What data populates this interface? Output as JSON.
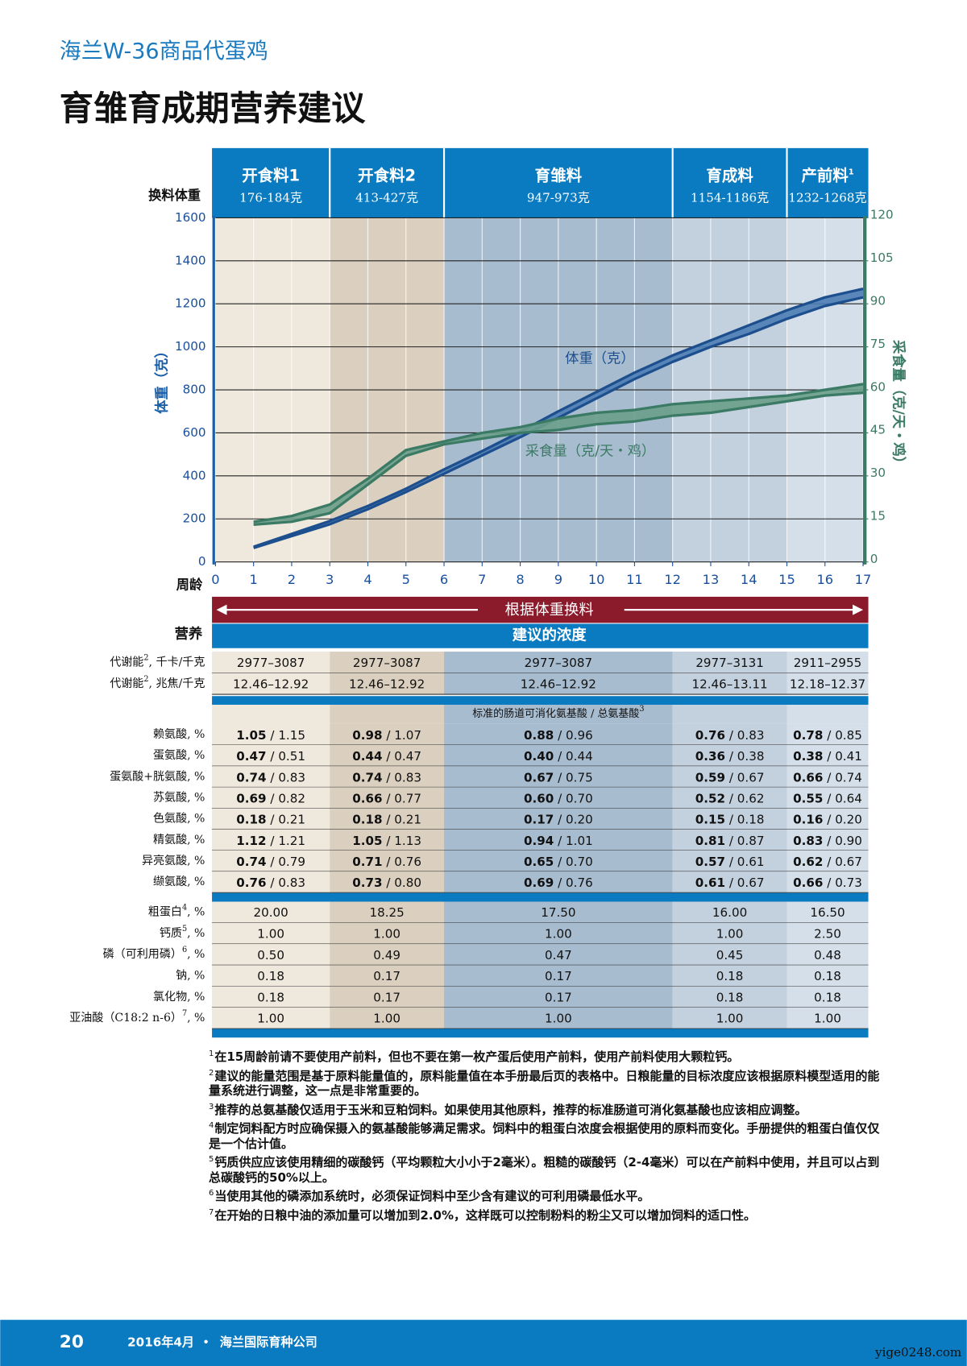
{
  "header": {
    "series_title": "海兰W-36商品代蛋鸡",
    "title": "育雏育成期营养建议"
  },
  "chart_data": {
    "type": "band",
    "phase_label": "换料体重",
    "phases": [
      {
        "name": "开食料1",
        "weight": "176-184克"
      },
      {
        "name": "开食料2",
        "weight": "413-427克"
      },
      {
        "name": "育雏料",
        "weight": "947-973克"
      },
      {
        "name": "育成料",
        "weight": "1154-1186克"
      },
      {
        "name": "产前料",
        "note": "1",
        "weight": "1232-1268克"
      }
    ],
    "x_label": "周龄",
    "x": [
      1,
      2,
      3,
      4,
      5,
      6,
      7,
      8,
      9,
      10,
      11,
      12,
      13,
      14,
      15,
      16,
      17
    ],
    "xlim": [
      0,
      17
    ],
    "xticks": [
      0,
      1,
      2,
      3,
      4,
      5,
      6,
      7,
      8,
      9,
      10,
      11,
      12,
      13,
      14,
      15,
      16,
      17
    ],
    "ylim": [
      0,
      1600
    ],
    "yticks": [
      0,
      200,
      400,
      600,
      800,
      1000,
      1200,
      1400,
      1600
    ],
    "y2lim": [
      0,
      120
    ],
    "y2ticks": [
      0,
      15,
      30,
      45,
      60,
      75,
      90,
      105,
      120
    ],
    "grid": true,
    "series": [
      {
        "name": "体重（克）",
        "color": "#1d4f8e",
        "fill": "#4d7db5",
        "low": [
          65,
          120,
          175,
          245,
          325,
          410,
          495,
          580,
          670,
          760,
          850,
          930,
          1000,
          1060,
          1130,
          1190,
          1230
        ],
        "high": [
          70,
          130,
          190,
          260,
          340,
          430,
          515,
          605,
          700,
          790,
          880,
          960,
          1030,
          1100,
          1170,
          1230,
          1270
        ]
      },
      {
        "name": "采食量（克/天・鸡）",
        "color": "#3b7a64",
        "fill": "#6a9e8a",
        "axis": "y2",
        "low": [
          13,
          14,
          17,
          27,
          37,
          41,
          43,
          45,
          46,
          48,
          49,
          51,
          52,
          54,
          56,
          58,
          59
        ],
        "high": [
          14,
          16,
          20,
          29,
          39,
          42,
          45,
          47,
          50,
          52,
          53,
          55,
          56,
          57,
          58,
          60,
          62
        ]
      }
    ],
    "banner": "根据体重换料"
  },
  "table": {
    "row_header": "营养",
    "column_header": "建议的浓度",
    "separator": " / ",
    "energy_rows": [
      {
        "label": "代谢能",
        "note": "2",
        "suffix": ", 千卡/千克",
        "cells": [
          "2977–3087",
          "2977–3087",
          "2977–3087",
          "2977–3131",
          "2911–2955"
        ]
      },
      {
        "label": "代谢能",
        "note": "2",
        "suffix": ", 兆焦/千克",
        "cells": [
          "12.46–12.92",
          "12.46–12.92",
          "12.46–12.92",
          "12.46–13.11",
          "12.18–12.37"
        ]
      }
    ],
    "amino_header": {
      "text": "标准的肠道可消化氨基酸 / 总氨基酸",
      "note": "3"
    },
    "amino_rows": [
      {
        "label": "赖氨酸, %",
        "cells": [
          [
            "1.05",
            "1.15"
          ],
          [
            "0.98",
            "1.07"
          ],
          [
            "0.88",
            "0.96"
          ],
          [
            "0.76",
            "0.83"
          ],
          [
            "0.78",
            "0.85"
          ]
        ]
      },
      {
        "label": "蛋氨酸, %",
        "cells": [
          [
            "0.47",
            "0.51"
          ],
          [
            "0.44",
            "0.47"
          ],
          [
            "0.40",
            "0.44"
          ],
          [
            "0.36",
            "0.38"
          ],
          [
            "0.38",
            "0.41"
          ]
        ]
      },
      {
        "label": "蛋氨酸+胱氨酸, %",
        "cells": [
          [
            "0.74",
            "0.83"
          ],
          [
            "0.74",
            "0.83"
          ],
          [
            "0.67",
            "0.75"
          ],
          [
            "0.59",
            "0.67"
          ],
          [
            "0.66",
            "0.74"
          ]
        ]
      },
      {
        "label": "苏氨酸, %",
        "cells": [
          [
            "0.69",
            "0.82"
          ],
          [
            "0.66",
            "0.77"
          ],
          [
            "0.60",
            "0.70"
          ],
          [
            "0.52",
            "0.62"
          ],
          [
            "0.55",
            "0.64"
          ]
        ]
      },
      {
        "label": "色氨酸, %",
        "cells": [
          [
            "0.18",
            "0.21"
          ],
          [
            "0.18",
            "0.21"
          ],
          [
            "0.17",
            "0.20"
          ],
          [
            "0.15",
            "0.18"
          ],
          [
            "0.16",
            "0.20"
          ]
        ]
      },
      {
        "label": "精氨酸, %",
        "cells": [
          [
            "1.12",
            "1.21"
          ],
          [
            "1.05",
            "1.13"
          ],
          [
            "0.94",
            "1.01"
          ],
          [
            "0.81",
            "0.87"
          ],
          [
            "0.83",
            "0.90"
          ]
        ]
      },
      {
        "label": "异亮氨酸, %",
        "cells": [
          [
            "0.74",
            "0.79"
          ],
          [
            "0.71",
            "0.76"
          ],
          [
            "0.65",
            "0.70"
          ],
          [
            "0.57",
            "0.61"
          ],
          [
            "0.62",
            "0.67"
          ]
        ]
      },
      {
        "label": "缬氨酸, %",
        "cells": [
          [
            "0.76",
            "0.83"
          ],
          [
            "0.73",
            "0.80"
          ],
          [
            "0.69",
            "0.76"
          ],
          [
            "0.61",
            "0.67"
          ],
          [
            "0.66",
            "0.73"
          ]
        ]
      }
    ],
    "other_rows": [
      {
        "label": "粗蛋白",
        "note": "4",
        "suffix": ", %",
        "cells": [
          "20.00",
          "18.25",
          "17.50",
          "16.00",
          "16.50"
        ]
      },
      {
        "label": "钙质",
        "note": "5",
        "suffix": ", %",
        "cells": [
          "1.00",
          "1.00",
          "1.00",
          "1.00",
          "2.50"
        ]
      },
      {
        "label": "磷（可利用磷）",
        "note": "6",
        "suffix": ", %",
        "cells": [
          "0.50",
          "0.49",
          "0.47",
          "0.45",
          "0.48"
        ]
      },
      {
        "label": "钠, %",
        "cells": [
          "0.18",
          "0.17",
          "0.17",
          "0.18",
          "0.18"
        ]
      },
      {
        "label": "氯化物, %",
        "cells": [
          "0.18",
          "0.17",
          "0.17",
          "0.18",
          "0.18"
        ]
      },
      {
        "label": "亚油酸（C18:2 n-6）",
        "note": "7",
        "suffix": ", %",
        "cells": [
          "1.00",
          "1.00",
          "1.00",
          "1.00",
          "1.00"
        ]
      }
    ]
  },
  "footnotes": [
    {
      "mark": "1",
      "text": "在15周龄前请不要使用产前料，但也不要在第一枚产蛋后使用产前料，使用产前料使用大颗粒钙。"
    },
    {
      "mark": "2",
      "text": "建议的能量范围是基于原料能量值的，原料能量值在本手册最后页的表格中。日粮能量的目标浓度应该根据原料模型适用的能量系统进行调整，这一点是非常重要的。"
    },
    {
      "mark": "3",
      "text": "推荐的总氨基酸仅适用于玉米和豆粕饲料。如果使用其他原料，推荐的标准肠道可消化氨基酸也应该相应调整。"
    },
    {
      "mark": "4",
      "text": "制定饲料配方时应确保摄入的氨基酸能够满足需求。饲料中的粗蛋白浓度会根据使用的原料而变化。手册提供的粗蛋白值仅仅是一个估计值。"
    },
    {
      "mark": "5",
      "text": "钙质供应应该使用精细的碳酸钙（平均颗粒大小小于2毫米）。粗糙的碳酸钙（2-4毫米）可以在产前料中使用，并且可以占到总碳酸钙的50%以上。"
    },
    {
      "mark": "6",
      "text": "当使用其他的磷添加系统时，必须保证饲料中至少含有建议的可利用磷最低水平。"
    },
    {
      "mark": "7",
      "text": "在开始的日粮中油的添加量可以增加到2.0%，这样既可以控制粉料的粉尘又可以增加饲料的适口性。"
    }
  ],
  "footer": {
    "page": "20",
    "date": "2016年4月",
    "separator": "•",
    "company": "海兰国际育种公司",
    "watermark": "yige0248.com"
  }
}
